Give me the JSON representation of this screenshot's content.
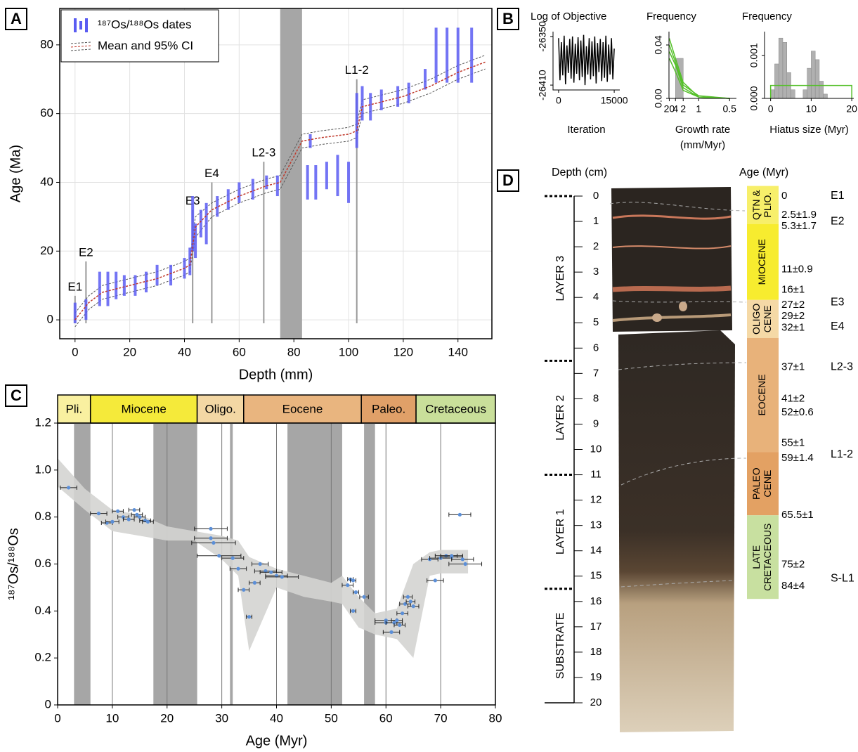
{
  "chart_data": [
    {
      "type": "range",
      "panel_label": "A",
      "xlabel": "Depth (mm)",
      "ylabel": "Age (Ma)",
      "xlim": [
        -5.6,
        152.4
      ],
      "ylim": [
        -5.5,
        90.6
      ],
      "xticks": [
        0,
        20,
        40,
        60,
        80,
        100,
        120,
        140
      ],
      "yticks": [
        0,
        20,
        40,
        60,
        80
      ],
      "grid": true,
      "hiatus_band": [
        75,
        83
      ],
      "band_color": "#a6a6a6",
      "legend": "upper left",
      "series": [
        {
          "name": "¹⁸⁷Os/¹⁸⁸Os dates",
          "color": "#5a5cf2",
          "x": [
            0,
            4,
            9,
            12,
            15,
            18,
            22,
            26,
            30,
            35,
            40,
            42,
            43,
            44,
            46,
            48,
            52,
            56,
            60,
            65,
            70,
            74,
            85,
            86,
            88,
            92,
            96,
            100,
            103,
            105,
            108,
            112,
            118,
            122,
            128,
            132,
            136,
            140,
            145
          ],
          "values": [
            2,
            3,
            9,
            9,
            10,
            10,
            10,
            11,
            13,
            13,
            15,
            17,
            28,
            23,
            28,
            28,
            33,
            35,
            37,
            38,
            40,
            39,
            40,
            52,
            40,
            42,
            42,
            40,
            58,
            63,
            62,
            64,
            65,
            66,
            70,
            77,
            77,
            77,
            77
          ],
          "errors": [
            3,
            3,
            5,
            5,
            4,
            3,
            3,
            3,
            3,
            3,
            3,
            4,
            8,
            5,
            4,
            6,
            3,
            3,
            3,
            3,
            2,
            3,
            5,
            2,
            5,
            4,
            6,
            6,
            8,
            5,
            4,
            3,
            3,
            3,
            3,
            8,
            8,
            8,
            8
          ]
        },
        {
          "name": "Mean and 95% CI",
          "color": "#c0392b",
          "ci_color": "#555555",
          "x": [
            0,
            5,
            10,
            20,
            30,
            40,
            42,
            44,
            50,
            60,
            70,
            75,
            83,
            90,
            100,
            103,
            105,
            110,
            120,
            130,
            140,
            150
          ],
          "values": [
            0,
            5,
            8,
            10,
            12,
            15,
            16,
            27,
            32,
            36,
            39,
            40,
            52,
            53,
            54,
            55,
            62,
            63,
            65,
            68,
            72,
            75
          ],
          "ci_upper": [
            2,
            7,
            10,
            12,
            14,
            17,
            18,
            30,
            34,
            38,
            41,
            42,
            54,
            55,
            56,
            57,
            64,
            65,
            67,
            70,
            74,
            77
          ],
          "ci_lower": [
            -2,
            3,
            6,
            8,
            10,
            13,
            14,
            24,
            30,
            34,
            37,
            38,
            50,
            51,
            52,
            53,
            60,
            61,
            63,
            66,
            70,
            73
          ]
        }
      ],
      "markers": [
        {
          "label": "E1",
          "x": 0,
          "y": 7
        },
        {
          "label": "E2",
          "x": 4,
          "y": 17
        },
        {
          "label": "E3",
          "x": 43,
          "y": 32
        },
        {
          "label": "E4",
          "x": 50,
          "y": 40
        },
        {
          "label": "L2-3",
          "x": 69,
          "y": 46
        },
        {
          "label": "L1-2",
          "x": 103,
          "y": 70
        }
      ]
    },
    {
      "type": "line",
      "panel_label": "B",
      "title": "Log of Objective",
      "xlabel": [
        "Iteration"
      ],
      "xlim": [
        -1500,
        16500
      ],
      "ylim": [
        -26416,
        -26344
      ],
      "xticks": [
        0,
        15000
      ],
      "yticks": [
        -26350,
        -26410
      ],
      "series": [
        {
          "color": "#000000",
          "x": [
            0,
            375,
            750,
            1125,
            1500,
            1875,
            2250,
            2625,
            3000,
            3375,
            3750,
            4125,
            4500,
            4875,
            5250,
            5625,
            6000,
            6375,
            6750,
            7125,
            7500,
            7875,
            8250,
            8625,
            9000,
            9375,
            9750,
            10125,
            10500,
            10875,
            11250,
            11625,
            12000,
            12375,
            12750,
            13125,
            13500,
            13875,
            14250,
            14625,
            15000
          ],
          "values": [
            -26352,
            -26404,
            -26357,
            -26398,
            -26349,
            -26409,
            -26361,
            -26395,
            -26353,
            -26402,
            -26350,
            -26407,
            -26359,
            -26396,
            -26351,
            -26404,
            -26355,
            -26400,
            -26348,
            -26410,
            -26362,
            -26397,
            -26352,
            -26403,
            -26356,
            -26399,
            -26350,
            -26408,
            -26358,
            -26394,
            -26353,
            -26405,
            -26357,
            -26401,
            -26349,
            -26406,
            -26360,
            -26397,
            -26352,
            -26403,
            -26365
          ]
        }
      ]
    },
    {
      "type": "line",
      "title": "Frequency",
      "xlabel": [
        "Growth rate",
        "(mm/Myr)"
      ],
      "xscale": "inverse",
      "xlim": [
        25,
        0.45
      ],
      "ylim": [
        0,
        0.05
      ],
      "xticks": [
        20,
        4,
        2,
        1,
        0.5
      ],
      "yticks": [
        {
          "value": 0,
          "label": "0.00"
        },
        0.04
      ],
      "bins": [
        4,
        2
      ],
      "counts": [
        0.03
      ],
      "bar_color": "#b0b0b0",
      "series": [
        {
          "color": "#55c02a",
          "x": [
            20,
            4,
            2,
            1,
            0.5
          ],
          "values": [
            0.045,
            0.03,
            0.012,
            0.001,
            0
          ]
        },
        {
          "color": "#55c02a",
          "x": [
            20,
            4,
            2,
            1,
            0.5
          ],
          "values": [
            0.04,
            0.027,
            0.01,
            0.002,
            0
          ]
        },
        {
          "color": "#55c02a",
          "x": [
            20,
            4,
            2,
            1,
            0.5
          ],
          "values": [
            0.035,
            0.025,
            0.008,
            0.001,
            0
          ]
        },
        {
          "color": "#55c02a",
          "x": [
            20,
            4,
            2,
            1,
            0.5
          ],
          "values": [
            0.03,
            0.02,
            0.006,
            0.001,
            0
          ]
        }
      ]
    },
    {
      "type": "histogram",
      "title": "Frequency",
      "xlabel": [
        "Hiatus size (Myr)"
      ],
      "xlim": [
        -1.5,
        20.5
      ],
      "ylim": [
        0,
        0.00155
      ],
      "xticks": [
        0,
        10,
        20
      ],
      "yticks": [
        {
          "value": 0,
          "label": "0.000"
        },
        {
          "value": 0.001,
          "label": "0.001"
        }
      ],
      "bins": [
        0,
        1,
        2,
        3,
        4,
        5,
        6,
        7,
        8,
        9,
        10,
        11,
        12,
        13,
        14,
        15,
        16,
        17,
        18,
        19,
        20
      ],
      "counts": [
        0.0002,
        0.0008,
        0.0014,
        0.0013,
        0.0006,
        0.0002,
        0,
        0,
        0.0002,
        0.0007,
        0.0011,
        0.0009,
        0.0004,
        0.0001,
        0,
        0,
        0,
        0,
        0,
        0
      ],
      "bar_color": "#b0b0b0",
      "series": [
        {
          "color": "#55c02a",
          "x": [
            0,
            0,
            20,
            20
          ],
          "values": [
            0,
            0.0003,
            0.0003,
            0
          ]
        }
      ]
    },
    {
      "type": "scatter",
      "panel_label": "C",
      "xlabel": "Age (Myr)",
      "ylabel": "¹⁸⁷Os/¹⁸⁸Os",
      "xlim": [
        0,
        80
      ],
      "ylim": [
        0,
        1.2
      ],
      "xticks": [
        0,
        10,
        20,
        30,
        40,
        50,
        60,
        70,
        80
      ],
      "yticks": [
        0,
        0.2,
        0.4,
        0.6,
        0.8,
        {
          "value": 1,
          "label": "1.0"
        },
        1.2
      ],
      "grid": true,
      "epochs": [
        {
          "name": "Pli.",
          "start": 0,
          "end": 6,
          "color": "#f9f0a0"
        },
        {
          "name": "Miocene",
          "start": 6,
          "end": 25.5,
          "color": "#f5ea3a"
        },
        {
          "name": "Oligo.",
          "start": 25.5,
          "end": 34,
          "color": "#f3d7a4"
        },
        {
          "name": "Eocene",
          "start": 34,
          "end": 55.5,
          "color": "#e9b57f"
        },
        {
          "name": "Paleo.",
          "start": 55.5,
          "end": 65.5,
          "color": "#e0a068"
        },
        {
          "name": "Cretaceous",
          "start": 65.5,
          "end": 80,
          "color": "#c9df9a"
        }
      ],
      "hiatus_bands": [
        [
          3,
          6
        ],
        [
          17.5,
          25.5
        ],
        [
          31.5,
          32
        ],
        [
          42,
          52
        ],
        [
          56,
          58
        ]
      ],
      "band_color": "#a6a6a6",
      "envelope": {
        "color": "#d4d4d2",
        "x": [
          0,
          5,
          10,
          15,
          20,
          25,
          30,
          33,
          35,
          40,
          45,
          50,
          52,
          55,
          58,
          62,
          65,
          68,
          70,
          75
        ],
        "upper": [
          1.05,
          0.92,
          0.83,
          0.81,
          0.76,
          0.74,
          0.72,
          0.7,
          0.63,
          0.58,
          0.55,
          0.52,
          0.55,
          0.46,
          0.39,
          0.41,
          0.6,
          0.65,
          0.66,
          0.66
        ],
        "lower": [
          0.93,
          0.83,
          0.74,
          0.72,
          0.7,
          0.7,
          0.62,
          0.55,
          0.23,
          0.5,
          0.46,
          0.44,
          0.43,
          0.33,
          0.3,
          0.28,
          0.2,
          0.55,
          0.56,
          0.56
        ]
      },
      "series": [
        {
          "color": "#5b8fd8",
          "x": [
            2,
            7.5,
            9,
            10,
            11,
            12,
            13,
            14,
            14.5,
            15,
            16,
            16.5,
            28,
            28,
            28.5,
            29.5,
            32,
            33,
            34,
            35,
            36,
            37,
            38,
            39,
            40,
            41,
            53,
            53.5,
            54,
            54,
            54.5,
            56,
            60,
            60,
            61,
            61.5,
            62,
            62.5,
            63,
            63.5,
            64,
            64.5,
            65,
            68,
            69,
            70,
            71,
            72,
            72,
            73.5,
            74,
            74.5
          ],
          "values": [
            0.925,
            0.815,
            0.775,
            0.78,
            0.825,
            0.8,
            0.79,
            0.83,
            0.81,
            0.8,
            0.785,
            0.78,
            0.75,
            0.71,
            0.69,
            0.635,
            0.625,
            0.58,
            0.49,
            0.375,
            0.52,
            0.6,
            0.57,
            0.565,
            0.55,
            0.545,
            0.51,
            0.535,
            0.53,
            0.4,
            0.48,
            0.46,
            0.36,
            0.35,
            0.31,
            0.35,
            0.36,
            0.34,
            0.39,
            0.43,
            0.46,
            0.44,
            0.42,
            0.62,
            0.53,
            0.625,
            0.635,
            0.635,
            0.63,
            0.81,
            0.62,
            0.6
          ],
          "x_errors": [
            1.5,
            1.5,
            1,
            1.2,
            1,
            1,
            1,
            1,
            1,
            1,
            1,
            1,
            3,
            3,
            4,
            4,
            2,
            1.5,
            1,
            0.5,
            1,
            1.5,
            2,
            2,
            2,
            3,
            1,
            0.5,
            0.5,
            0.5,
            0.5,
            0.8,
            2,
            2,
            1.5,
            1.5,
            1,
            1,
            1,
            1,
            0.8,
            0.8,
            1,
            1.5,
            1.5,
            2,
            2,
            2,
            2,
            2,
            2,
            3
          ]
        }
      ]
    }
  ],
  "panel_d": {
    "panel_label": "D",
    "depth_title": "Depth (cm)",
    "age_title": "Age (Myr)",
    "depth_lim": [
      0,
      20
    ],
    "depth_ticks": [
      0,
      1,
      2,
      3,
      4,
      5,
      6,
      7,
      8,
      9,
      10,
      11,
      12,
      13,
      14,
      15,
      16,
      17,
      18,
      19,
      20
    ],
    "layers": [
      {
        "label": "LAYER 3",
        "top": 0,
        "bottom": 6.5
      },
      {
        "label": "LAYER 2",
        "top": 6.5,
        "bottom": 11
      },
      {
        "label": "LAYER 1",
        "top": 11,
        "bottom": 15.5
      },
      {
        "label": "SUBSTRATE",
        "top": 15.5,
        "bottom": 20
      }
    ],
    "epochs": [
      {
        "lines": [
          "QTN &",
          "PLIO."
        ],
        "top": -0.4,
        "bottom": 1.1,
        "color": "#f7ef6a"
      },
      {
        "lines": [
          "MIOCENE"
        ],
        "top": 1.1,
        "bottom": 4.1,
        "color": "#f7ec2f"
      },
      {
        "lines": [
          "OLIGO",
          "CENE"
        ],
        "top": 4.1,
        "bottom": 5.6,
        "color": "#f5d9a6"
      },
      {
        "lines": [
          "EOCENE"
        ],
        "top": 5.6,
        "bottom": 10.1,
        "color": "#e8b27a"
      },
      {
        "lines": [
          "PALEO",
          "CENE"
        ],
        "top": 10.1,
        "bottom": 12.6,
        "color": "#e3a163"
      },
      {
        "lines": [
          "LATE",
          "CRETACEOUS"
        ],
        "top": 12.6,
        "bottom": 15.9,
        "color": "#c8e0a0"
      }
    ],
    "ages": [
      {
        "label": "0",
        "depth": 0
      },
      {
        "label": "2.5±1.9",
        "depth": 0.75
      },
      {
        "label": "5.3±1.7",
        "depth": 1.2
      },
      {
        "label": "11±0.9",
        "depth": 2.9
      },
      {
        "label": "16±1",
        "depth": 3.7
      },
      {
        "label": "27±2",
        "depth": 4.3
      },
      {
        "label": "29±2",
        "depth": 4.75
      },
      {
        "label": "32±1",
        "depth": 5.2
      },
      {
        "label": "37±1",
        "depth": 6.75
      },
      {
        "label": "41±2",
        "depth": 8.0
      },
      {
        "label": "52±0.6",
        "depth": 8.55
      },
      {
        "label": "55±1",
        "depth": 9.75
      },
      {
        "label": "59±1.4",
        "depth": 10.35
      },
      {
        "label": "65.5±1",
        "depth": 12.6
      },
      {
        "label": "75±2",
        "depth": 14.55
      },
      {
        "label": "84±4",
        "depth": 15.4
      }
    ],
    "events": [
      {
        "label": "E1",
        "depth": 0
      },
      {
        "label": "E2",
        "depth": 1.0
      },
      {
        "label": "E3",
        "depth": 4.2
      },
      {
        "label": "E4",
        "depth": 5.15
      },
      {
        "label": "L2-3",
        "depth": 6.75
      },
      {
        "label": "L1-2",
        "depth": 10.2
      },
      {
        "label": "S-L1",
        "depth": 15.1
      }
    ]
  }
}
